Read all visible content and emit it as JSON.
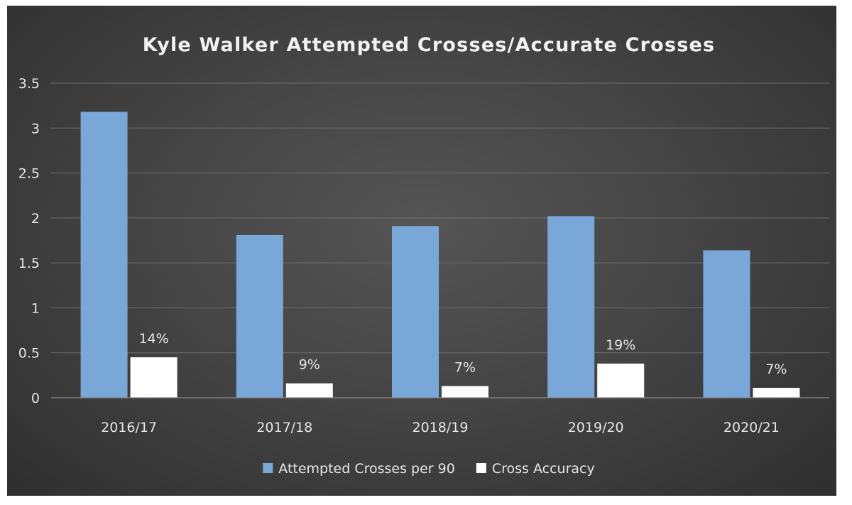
{
  "chart_data": {
    "type": "bar",
    "title": "Kyle Walker Attempted Crosses/Accurate  Crosses",
    "categories": [
      "2016/17",
      "2017/18",
      "2018/19",
      "2019/20",
      "2020/21"
    ],
    "series": [
      {
        "name": "Attempted Crosses per 90",
        "values": [
          3.18,
          1.81,
          1.91,
          2.02,
          1.64
        ],
        "color": "#79a7d8",
        "labels": [
          "",
          "",
          "",
          "",
          ""
        ]
      },
      {
        "name": "Cross Accuracy",
        "values": [
          0.45,
          0.16,
          0.13,
          0.38,
          0.11
        ],
        "color": "#ffffff",
        "labels": [
          "14%",
          "9%",
          "7%",
          "19%",
          "7%"
        ]
      }
    ],
    "ylim": [
      0,
      3.5
    ],
    "yticks": [
      "0",
      "0.5",
      "1",
      "1.5",
      "2",
      "2.5",
      "3",
      "3.5"
    ],
    "grid": true,
    "legend_position": "bottom"
  }
}
